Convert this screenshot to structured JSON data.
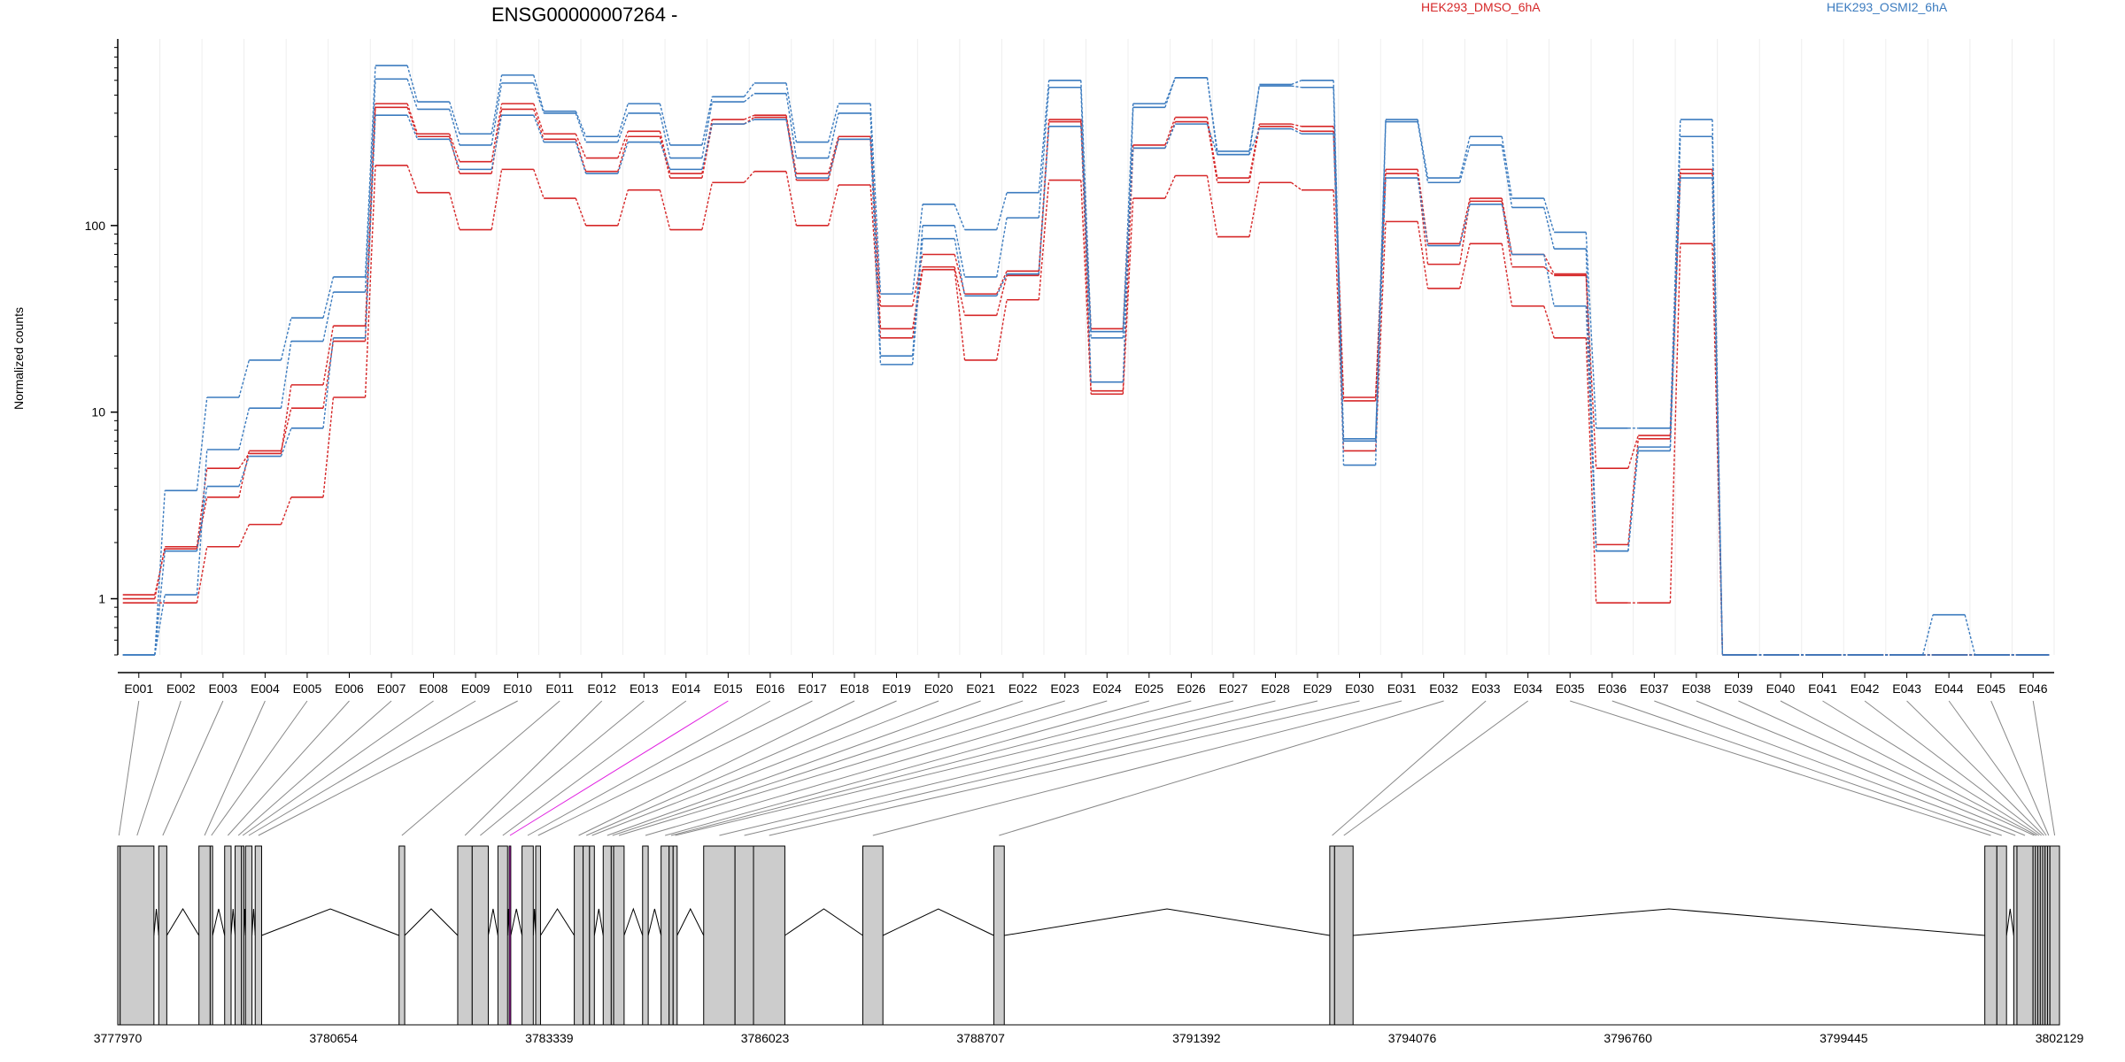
{
  "chart_data": {
    "type": "line",
    "title": "ENSG00000007264 -",
    "ylabel": "Normalized counts",
    "yscale": "log",
    "ylim": [
      0.5,
      1000
    ],
    "yticks": [
      1,
      10,
      100
    ],
    "ytick_labels": [
      "1",
      "10",
      "100"
    ],
    "grid": "vertical-light",
    "legend": "top",
    "legend_entries": [
      {
        "name": "HEK293_DMSO_6hA",
        "color": "#d62728"
      },
      {
        "name": "HEK293_OSMI2_6hA",
        "color": "#3b7bbf"
      }
    ],
    "categories": [
      "E001",
      "E002",
      "E003",
      "E004",
      "E005",
      "E006",
      "E007",
      "E008",
      "E009",
      "E010",
      "E011",
      "E012",
      "E013",
      "E014",
      "E015",
      "E016",
      "E017",
      "E018",
      "E019",
      "E020",
      "E021",
      "E022",
      "E023",
      "E024",
      "E025",
      "E026",
      "E027",
      "E028",
      "E029",
      "E030",
      "E031",
      "E032",
      "E033",
      "E034",
      "E035",
      "E036",
      "E037",
      "E038",
      "E039",
      "E040",
      "E041",
      "E042",
      "E043",
      "E044",
      "E045",
      "E046"
    ],
    "series": [
      {
        "group": "HEK293_DMSO_6hA",
        "color": "#d62728",
        "values": [
          1,
          1.9,
          5,
          6,
          14,
          29,
          450,
          310,
          220,
          450,
          310,
          230,
          320,
          190,
          370,
          390,
          190,
          300,
          37,
          70,
          43,
          57,
          370,
          28,
          270,
          380,
          180,
          350,
          340,
          12,
          200,
          80,
          140,
          70,
          55,
          5,
          7.5,
          200,
          0.5,
          0.5,
          0.5,
          0.5,
          0.5,
          0.5,
          0.5,
          0.5
        ]
      },
      {
        "group": "HEK293_DMSO_6hA",
        "color": "#d62728",
        "values": [
          1.05,
          1.85,
          3.5,
          6.2,
          10.5,
          24,
          430,
          300,
          190,
          420,
          290,
          195,
          300,
          180,
          350,
          380,
          175,
          290,
          28,
          60,
          33,
          54,
          360,
          13,
          260,
          360,
          170,
          340,
          320,
          11.5,
          190,
          62,
          135,
          60,
          54,
          1.95,
          7.2,
          190,
          0.5,
          0.5,
          0.5,
          0.5,
          0.5,
          0.5,
          0.5,
          0.5
        ]
      },
      {
        "group": "HEK293_DMSO_6hA",
        "color": "#d62728",
        "values": [
          0.95,
          0.95,
          1.9,
          2.5,
          3.5,
          12,
          210,
          150,
          95,
          200,
          140,
          100,
          155,
          95,
          170,
          195,
          100,
          165,
          25,
          58,
          19,
          40,
          175,
          12.5,
          140,
          185,
          87,
          170,
          155,
          6.2,
          105,
          46,
          80,
          37,
          25,
          0.95,
          0.95,
          80,
          0.5,
          0.5,
          0.5,
          0.5,
          0.5,
          0.5,
          0.5,
          0.5
        ]
      },
      {
        "group": "HEK293_OSMI2_6hA",
        "color": "#3b7bbf",
        "values": [
          0.5,
          3.8,
          12,
          19,
          32,
          53,
          720,
          460,
          310,
          640,
          410,
          300,
          450,
          270,
          490,
          580,
          280,
          450,
          43,
          130,
          95,
          150,
          600,
          27,
          450,
          620,
          240,
          570,
          600,
          7,
          370,
          180,
          300,
          140,
          92,
          8.2,
          8.2,
          370,
          0.5,
          0.5,
          0.5,
          0.5,
          0.5,
          0.82,
          0.5,
          0.5
        ]
      },
      {
        "group": "HEK293_OSMI2_6hA",
        "color": "#3b7bbf",
        "values": [
          0.5,
          1.05,
          6.3,
          10.5,
          24,
          44,
          610,
          420,
          270,
          580,
          400,
          280,
          400,
          230,
          460,
          510,
          230,
          400,
          20,
          100,
          53,
          110,
          550,
          14.5,
          430,
          620,
          250,
          560,
          550,
          5.2,
          360,
          170,
          270,
          125,
          75,
          1.8,
          6.2,
          300,
          0.5,
          0.5,
          0.5,
          0.5,
          0.5,
          0.5,
          0.5,
          0.5
        ]
      },
      {
        "group": "HEK293_OSMI2_6hA",
        "color": "#3b7bbf",
        "values": [
          0.5,
          1.8,
          4,
          5.8,
          8.2,
          25,
          390,
          290,
          200,
          390,
          280,
          190,
          280,
          200,
          350,
          370,
          180,
          290,
          18,
          85,
          42,
          55,
          340,
          25,
          260,
          350,
          240,
          330,
          310,
          7.2,
          180,
          78,
          130,
          70,
          37,
          1.8,
          6.5,
          180,
          0.5,
          0.5,
          0.5,
          0.5,
          0.5,
          0.5,
          0.5,
          0.5
        ]
      }
    ],
    "genomic_axis": {
      "tick_labels": [
        "3777970",
        "3780654",
        "3783339",
        "3786023",
        "3788707",
        "3791392",
        "3794076",
        "3796760",
        "3799445",
        "3802129"
      ],
      "range": [
        3777970,
        3802129
      ]
    },
    "exons": [
      {
        "id": "E001",
        "start": 3777970,
        "end": 3778000
      },
      {
        "id": "E002",
        "start": 3778000,
        "end": 3778420
      },
      {
        "id": "E003",
        "start": 3778480,
        "end": 3778580
      },
      {
        "id": "E004",
        "start": 3778980,
        "end": 3779120
      },
      {
        "id": "E005",
        "start": 3779120,
        "end": 3779150
      },
      {
        "id": "E006",
        "start": 3779300,
        "end": 3779380
      },
      {
        "id": "E007",
        "start": 3779430,
        "end": 3779510
      },
      {
        "id": "E008",
        "start": 3779510,
        "end": 3779540
      },
      {
        "id": "E009",
        "start": 3779560,
        "end": 3779640
      },
      {
        "id": "E010",
        "start": 3779680,
        "end": 3779760
      },
      {
        "id": "E011",
        "start": 3781470,
        "end": 3781540
      },
      {
        "id": "E012",
        "start": 3782200,
        "end": 3782380
      },
      {
        "id": "E013",
        "start": 3782380,
        "end": 3782580
      },
      {
        "id": "E014",
        "start": 3782700,
        "end": 3782820
      },
      {
        "id": "E015",
        "start": 3782840,
        "end": 3782860
      },
      {
        "id": "E016",
        "start": 3783000,
        "end": 3783140
      },
      {
        "id": "E017",
        "start": 3783170,
        "end": 3783230
      },
      {
        "id": "E018",
        "start": 3783650,
        "end": 3783760
      },
      {
        "id": "E019",
        "start": 3783760,
        "end": 3783840
      },
      {
        "id": "E020",
        "start": 3783840,
        "end": 3783900
      },
      {
        "id": "E021",
        "start": 3784010,
        "end": 3784110
      },
      {
        "id": "E022",
        "start": 3784110,
        "end": 3784140
      },
      {
        "id": "E023",
        "start": 3784140,
        "end": 3784270
      },
      {
        "id": "E024",
        "start": 3784500,
        "end": 3784570
      },
      {
        "id": "E025",
        "start": 3784730,
        "end": 3784830
      },
      {
        "id": "E026",
        "start": 3784830,
        "end": 3784880
      },
      {
        "id": "E027",
        "start": 3784880,
        "end": 3784930
      },
      {
        "id": "E028",
        "start": 3785260,
        "end": 3785650
      },
      {
        "id": "E029",
        "start": 3785650,
        "end": 3785880
      },
      {
        "id": "E030",
        "start": 3785880,
        "end": 3786270
      },
      {
        "id": "E031",
        "start": 3787240,
        "end": 3787490
      },
      {
        "id": "E032",
        "start": 3788870,
        "end": 3789000
      },
      {
        "id": "E033",
        "start": 3793050,
        "end": 3793110
      },
      {
        "id": "E034",
        "start": 3793110,
        "end": 3793340
      },
      {
        "id": "E035",
        "start": 3801200,
        "end": 3801350
      },
      {
        "id": "E036",
        "start": 3801350,
        "end": 3801470
      },
      {
        "id": "E037",
        "start": 3801560,
        "end": 3801600
      },
      {
        "id": "E038",
        "start": 3801600,
        "end": 3801800
      },
      {
        "id": "E039",
        "start": 3801800,
        "end": 3801830
      },
      {
        "id": "E040",
        "start": 3801830,
        "end": 3801860
      },
      {
        "id": "E041",
        "start": 3801860,
        "end": 3801890
      },
      {
        "id": "E042",
        "start": 3801890,
        "end": 3801920
      },
      {
        "id": "E043",
        "start": 3801920,
        "end": 3801950
      },
      {
        "id": "E044",
        "start": 3801950,
        "end": 3801980
      },
      {
        "id": "E045",
        "start": 3801980,
        "end": 3802010
      },
      {
        "id": "E046",
        "start": 3802010,
        "end": 3802129
      }
    ],
    "highlight_exon": "E015",
    "colors": {
      "dmso": "#d62728",
      "osmi": "#3b7bbf",
      "highlight": "#e020e0",
      "exon_fill": "#cccccc"
    }
  }
}
